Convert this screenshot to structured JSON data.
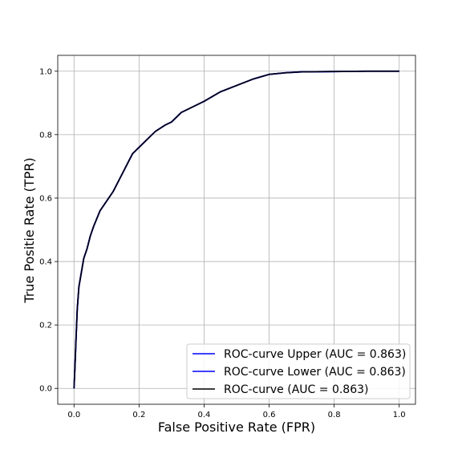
{
  "chart_data": {
    "type": "line",
    "title": "",
    "xlabel": "False Positive Rate (FPR)",
    "ylabel": "True Positie Rate (TPR)",
    "xlim": [
      -0.05,
      1.05
    ],
    "ylim": [
      -0.05,
      1.05
    ],
    "xticks": [
      0.0,
      0.2,
      0.4,
      0.6,
      0.8,
      1.0
    ],
    "yticks": [
      0.0,
      0.2,
      0.4,
      0.6,
      0.8,
      1.0
    ],
    "xtick_labels": [
      "0.0",
      "0.2",
      "0.4",
      "0.6",
      "0.8",
      "1.0"
    ],
    "ytick_labels": [
      "0.0",
      "0.2",
      "0.4",
      "0.6",
      "0.8",
      "1.0"
    ],
    "grid": true,
    "legend_position": "bottom-right",
    "series": [
      {
        "name": "ROC-curve Upper (AUC = 0.863)",
        "color": "#0000ff",
        "x": [
          0.0,
          0.003,
          0.006,
          0.01,
          0.015,
          0.02,
          0.03,
          0.04,
          0.05,
          0.06,
          0.08,
          0.1,
          0.12,
          0.14,
          0.16,
          0.18,
          0.2,
          0.22,
          0.25,
          0.28,
          0.3,
          0.33,
          0.36,
          0.4,
          0.45,
          0.5,
          0.55,
          0.6,
          0.65,
          0.7,
          0.8,
          0.9,
          1.0
        ],
        "y": [
          0.0,
          0.07,
          0.15,
          0.25,
          0.32,
          0.35,
          0.41,
          0.44,
          0.48,
          0.51,
          0.56,
          0.59,
          0.62,
          0.66,
          0.7,
          0.74,
          0.76,
          0.78,
          0.81,
          0.83,
          0.84,
          0.87,
          0.885,
          0.905,
          0.935,
          0.955,
          0.975,
          0.99,
          0.995,
          0.998,
          0.999,
          1.0,
          1.0
        ]
      },
      {
        "name": "ROC-curve Lower (AUC = 0.863)",
        "color": "#0000ff",
        "x": [
          0.0,
          0.003,
          0.006,
          0.01,
          0.015,
          0.02,
          0.03,
          0.04,
          0.05,
          0.06,
          0.08,
          0.1,
          0.12,
          0.14,
          0.16,
          0.18,
          0.2,
          0.22,
          0.25,
          0.28,
          0.3,
          0.33,
          0.36,
          0.4,
          0.45,
          0.5,
          0.55,
          0.6,
          0.65,
          0.7,
          0.8,
          0.9,
          1.0
        ],
        "y": [
          0.0,
          0.07,
          0.15,
          0.25,
          0.32,
          0.35,
          0.41,
          0.44,
          0.48,
          0.51,
          0.56,
          0.59,
          0.62,
          0.66,
          0.7,
          0.74,
          0.76,
          0.78,
          0.81,
          0.83,
          0.84,
          0.87,
          0.885,
          0.905,
          0.935,
          0.955,
          0.975,
          0.99,
          0.995,
          0.998,
          0.999,
          1.0,
          1.0
        ]
      },
      {
        "name": "ROC-curve (AUC = 0.863)",
        "color": "#000000",
        "x": [
          0.0,
          0.003,
          0.006,
          0.01,
          0.015,
          0.02,
          0.03,
          0.04,
          0.05,
          0.06,
          0.08,
          0.1,
          0.12,
          0.14,
          0.16,
          0.18,
          0.2,
          0.22,
          0.25,
          0.28,
          0.3,
          0.33,
          0.36,
          0.4,
          0.45,
          0.5,
          0.55,
          0.6,
          0.65,
          0.7,
          0.8,
          0.9,
          1.0
        ],
        "y": [
          0.0,
          0.07,
          0.15,
          0.25,
          0.32,
          0.35,
          0.41,
          0.44,
          0.48,
          0.51,
          0.56,
          0.59,
          0.62,
          0.66,
          0.7,
          0.74,
          0.76,
          0.78,
          0.81,
          0.83,
          0.84,
          0.87,
          0.885,
          0.905,
          0.935,
          0.955,
          0.975,
          0.99,
          0.995,
          0.998,
          0.999,
          1.0,
          1.0
        ]
      }
    ]
  }
}
